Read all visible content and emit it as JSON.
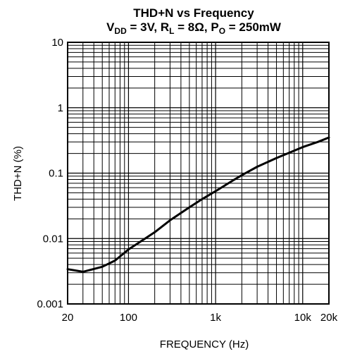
{
  "chart_data": {
    "type": "line",
    "title": "THD+N vs Frequency",
    "subtitle": {
      "v_main": "V",
      "v_sub": "DD",
      "v_rest": " = 3V, ",
      "r_main": "R",
      "r_sub": "L",
      "r_rest": " = 8Ω, ",
      "p_main": "P",
      "p_sub": "O",
      "p_rest": " = 250mW"
    },
    "xlabel": "FREQUENCY (Hz)",
    "ylabel": "THD+N (%)",
    "x_scale": "log",
    "y_scale": "log",
    "xlim": [
      20,
      20000
    ],
    "ylim": [
      0.001,
      10
    ],
    "grid": true,
    "x_ticks": [
      {
        "value": 20,
        "label": "20"
      },
      {
        "value": 100,
        "label": "100"
      },
      {
        "value": 1000,
        "label": "1k"
      },
      {
        "value": 10000,
        "label": "10k"
      },
      {
        "value": 20000,
        "label": "20k"
      }
    ],
    "y_ticks": [
      {
        "value": 0.001,
        "label": "0.001"
      },
      {
        "value": 0.01,
        "label": "0.01"
      },
      {
        "value": 0.1,
        "label": "0.1"
      },
      {
        "value": 1,
        "label": "1"
      },
      {
        "value": 10,
        "label": "10"
      }
    ],
    "series": [
      {
        "x": [
          20,
          30,
          50,
          70,
          100,
          150,
          200,
          300,
          500,
          700,
          1000,
          1500,
          2000,
          3000,
          5000,
          7000,
          10000,
          15000,
          20000
        ],
        "y": [
          0.0034,
          0.0031,
          0.0037,
          0.0046,
          0.0068,
          0.0097,
          0.0125,
          0.019,
          0.03,
          0.04,
          0.053,
          0.074,
          0.093,
          0.125,
          0.17,
          0.205,
          0.25,
          0.3,
          0.35
        ]
      }
    ]
  }
}
